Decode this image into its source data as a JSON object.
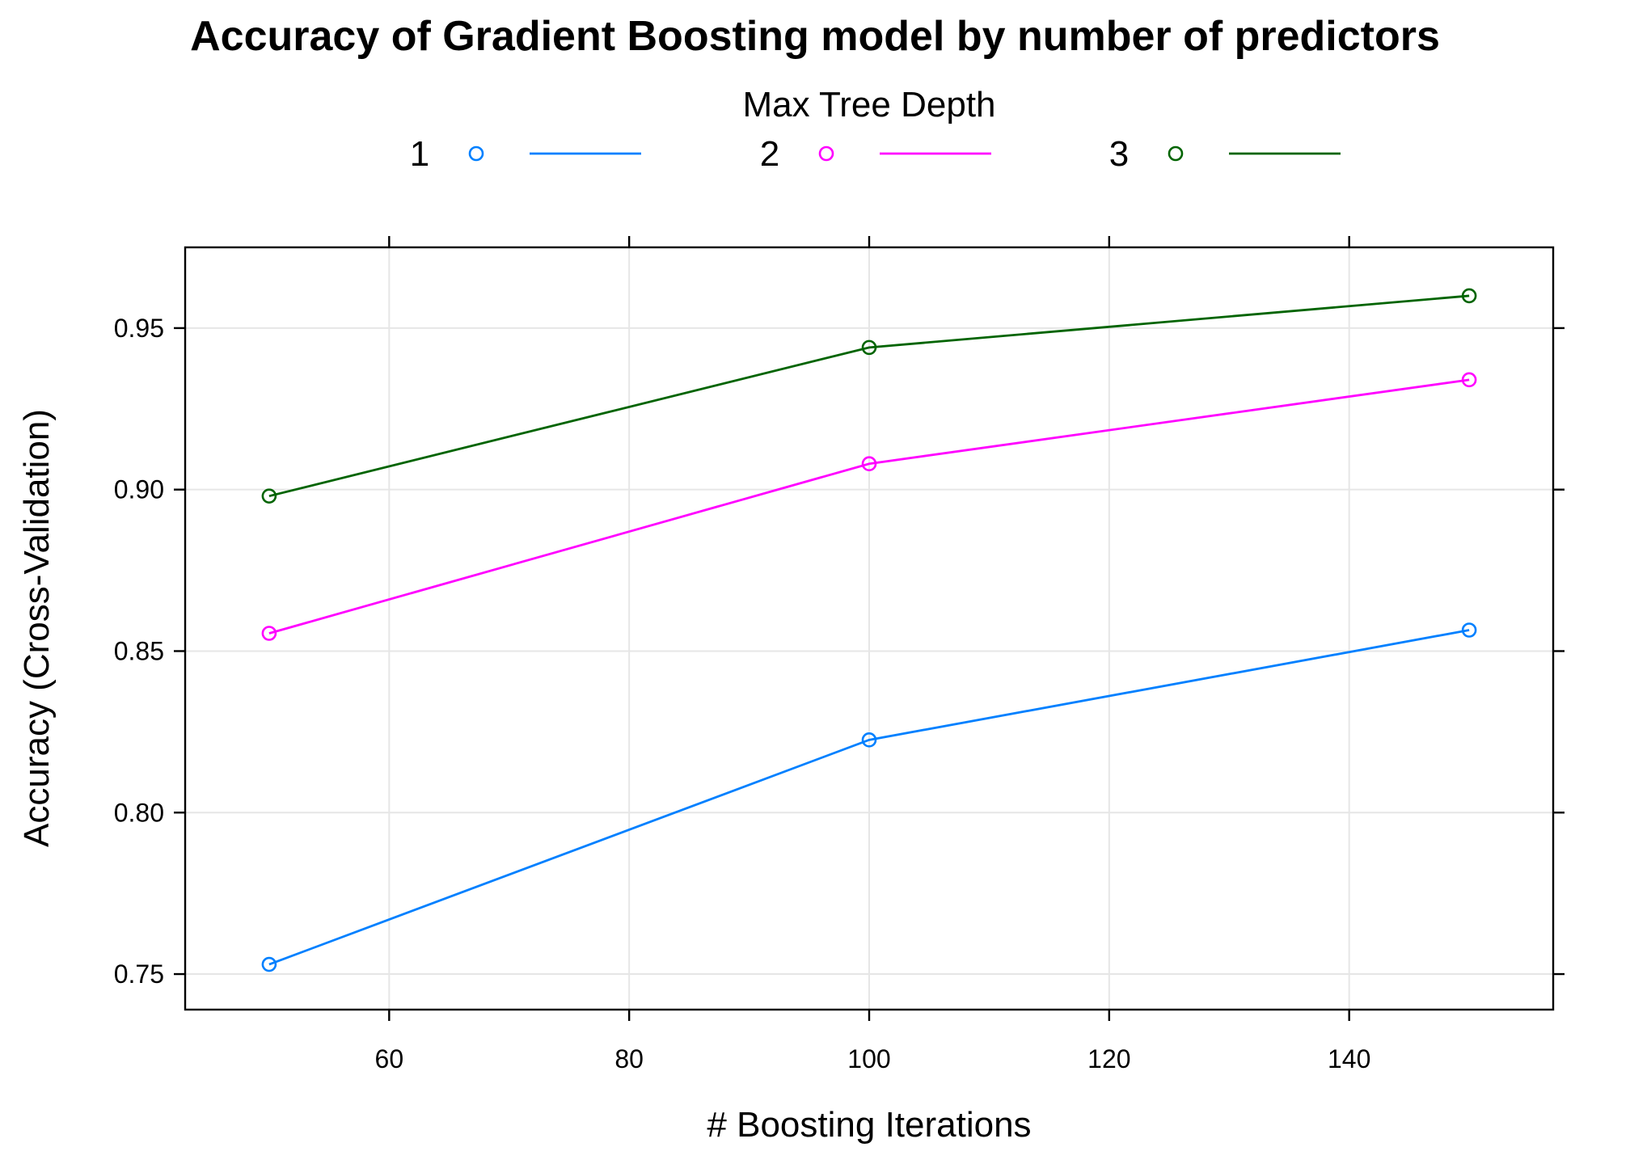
{
  "chart_data": {
    "type": "line",
    "title": "Accuracy of Gradient Boosting model by number of predictors",
    "legend_title": "Max Tree Depth",
    "legend_position": "top",
    "xlabel": "# Boosting Iterations",
    "ylabel": "Accuracy (Cross-Validation)",
    "x": [
      50,
      100,
      150
    ],
    "xlim": [
      43,
      157
    ],
    "ylim": [
      0.739,
      0.975
    ],
    "x_ticks": [
      60,
      80,
      100,
      120,
      140
    ],
    "x_tick_labels": [
      "60",
      "80",
      "100",
      "120",
      "140"
    ],
    "y_ticks": [
      0.75,
      0.8,
      0.85,
      0.9,
      0.95
    ],
    "y_tick_labels": [
      "0.75",
      "0.80",
      "0.85",
      "0.90",
      "0.95"
    ],
    "grid": true,
    "series": [
      {
        "name": "1",
        "color": "#0080ff",
        "values": [
          0.753,
          0.8225,
          0.8565
        ]
      },
      {
        "name": "2",
        "color": "#ff00ff",
        "values": [
          0.8555,
          0.908,
          0.934
        ]
      },
      {
        "name": "3",
        "color": "#006400",
        "values": [
          0.898,
          0.944,
          0.96
        ]
      }
    ]
  }
}
